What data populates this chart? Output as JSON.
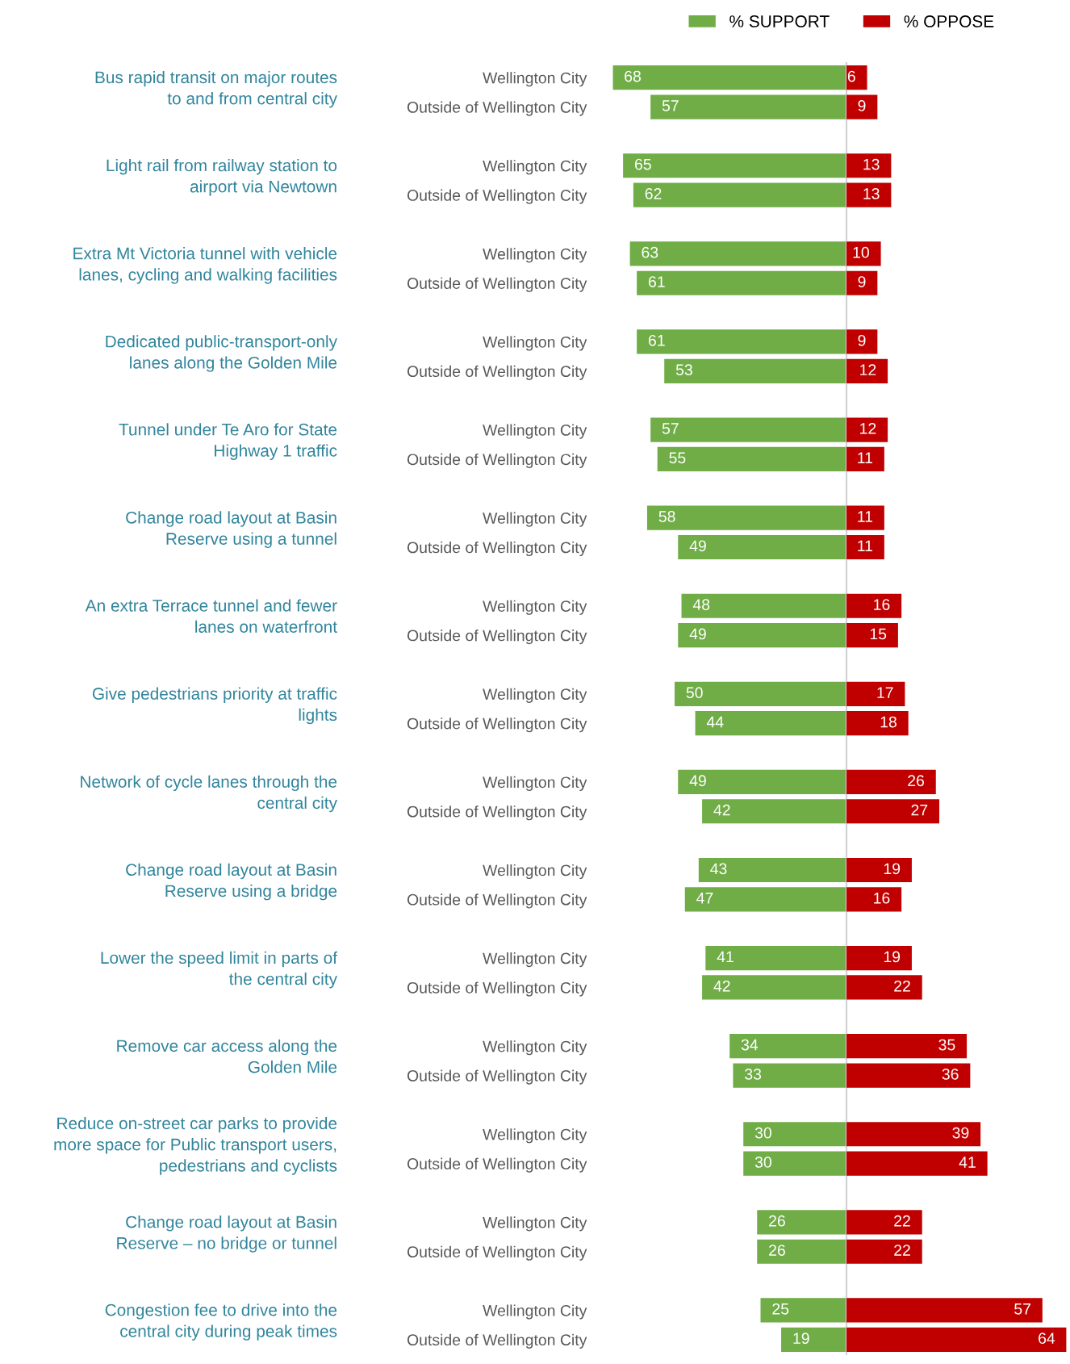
{
  "chart_data": [
    {
      "type": "bar",
      "orientation": "horizontal",
      "categories": [
        "Wellington City",
        "Outside of Wellington City",
        null,
        "Wellington City",
        "Outside of Wellington City",
        null,
        "Wellington City",
        "Outside of Wellington City",
        null,
        "Wellington City",
        "Outside of Wellington City",
        null,
        "Wellington City",
        "Outside of Wellington City",
        null,
        "Wellington City",
        "Outside of Wellington City",
        null,
        "Wellington City",
        "Outside of Wellington City",
        null,
        "Wellington City",
        "Outside of Wellington City",
        null,
        "Wellington City",
        "Outside of Wellington City",
        null,
        "Wellington City",
        "Outside of Wellington City",
        null,
        "Wellington City",
        "Outside of Wellington City",
        null,
        "Wellington City",
        "Outside of Wellington City",
        null,
        "Wellington City",
        "Outside of Wellington City",
        null,
        "Wellington City",
        "Outside of Wellington City",
        null,
        "Wellington City",
        "Outside of Wellington City"
      ],
      "series": [
        {
          "name": "% SUPPORT",
          "color": "#70ad47",
          "values": [
            68,
            57,
            null,
            65,
            62,
            null,
            63,
            61,
            null,
            61,
            53,
            null,
            57,
            55,
            null,
            58,
            49,
            null,
            48,
            49,
            null,
            50,
            44,
            null,
            49,
            42,
            null,
            43,
            47,
            null,
            41,
            42,
            null,
            34,
            33,
            null,
            30,
            30,
            null,
            26,
            26,
            null,
            25,
            19
          ]
        }
      ],
      "xlim": [
        68,
        0
      ],
      "data_labels": true,
      "tick_labels": "y",
      "legend": "top right",
      "annotations": [
        "Bus rapid transit on major routes\nto and from central city",
        "Light rail from railway station to\nairport via Newtown",
        "Extra Mt Victoria tunnel with vehicle\nlanes, cycling and walking facilities",
        "Dedicated public-transport-only\nlanes along the Golden Mile",
        "Tunnel under Te Aro for State\nHighway 1 traffic",
        "Change road layout at Basin\nReserve using a tunnel",
        "An extra Terrace tunnel and fewer\nlanes on waterfront",
        "Give pedestrians priority at traffic\nlights",
        "Network of cycle lanes through the\ncentral city",
        "Change road layout at Basin\nReserve using a bridge",
        "Lower the speed limit in parts of\nthe central city",
        "Remove car access along the\nGolden Mile",
        "Reduce on-street car parks to provide\nmore space for Public transport users,\npedestrians and cyclists",
        "Change road layout at Basin\nReserve – no bridge or tunnel",
        "Congestion fee to drive into the\ncentral city during peak times"
      ]
    },
    {
      "type": "bar",
      "orientation": "horizontal",
      "categories": [
        null,
        null,
        null,
        null,
        null,
        null,
        null,
        null,
        null,
        null,
        null,
        null,
        null,
        null,
        null,
        null,
        null,
        null,
        null,
        null,
        null,
        null,
        null,
        null,
        null,
        null,
        null,
        null,
        null,
        null,
        null,
        null,
        null,
        null,
        null,
        null,
        null,
        null,
        null,
        null,
        null,
        null,
        null,
        null
      ],
      "series": [
        {
          "name": "% OPPOSE",
          "color": "#c00000",
          "values": [
            6,
            9,
            null,
            13,
            13,
            null,
            10,
            9,
            null,
            9,
            12,
            null,
            12,
            11,
            null,
            11,
            11,
            null,
            16,
            15,
            null,
            17,
            18,
            null,
            26,
            27,
            null,
            19,
            16,
            null,
            19,
            22,
            null,
            35,
            36,
            null,
            39,
            41,
            null,
            22,
            22,
            null,
            57,
            64
          ]
        }
      ],
      "xlim": [
        0,
        64
      ],
      "data_labels": true,
      "tick_labels": false,
      "legend": "top left"
    }
  ]
}
